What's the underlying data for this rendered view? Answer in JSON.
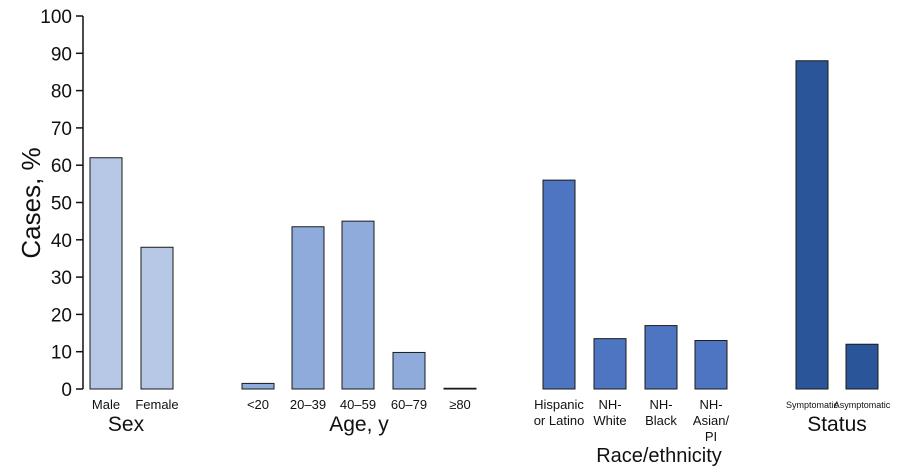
{
  "chart_data": {
    "type": "bar",
    "ylabel": "Cases, %",
    "ylim": [
      0,
      100
    ],
    "yticks": [
      0,
      10,
      20,
      30,
      40,
      50,
      60,
      70,
      80,
      90,
      100
    ],
    "grid": false,
    "legend": "none",
    "groups": [
      {
        "name": "Sex",
        "color": "#b6c8e6",
        "categories": [
          [
            "Male"
          ],
          [
            "Female"
          ]
        ],
        "values": [
          62,
          38
        ]
      },
      {
        "name": "Age, y",
        "color": "#8eabdb",
        "categories": [
          [
            "<20"
          ],
          [
            "20–39"
          ],
          [
            "40–59"
          ],
          [
            "60–79"
          ],
          [
            "≥80"
          ]
        ],
        "values": [
          1.5,
          43.5,
          45,
          9.8,
          0.2
        ]
      },
      {
        "name": "Race/ethnicity",
        "color": "#4e75c2",
        "categories": [
          [
            "Hispanic",
            "or Latino"
          ],
          [
            "NH-",
            "White"
          ],
          [
            "NH-",
            "Black"
          ],
          [
            "NH-",
            "Asian/",
            "PI"
          ]
        ],
        "values": [
          56,
          13.5,
          17,
          13
        ]
      },
      {
        "name": "Status",
        "color": "#2a5699",
        "categories": [
          [
            "Symptomatic"
          ],
          [
            "Asymptomatic"
          ]
        ],
        "values": [
          88,
          12
        ]
      }
    ]
  }
}
